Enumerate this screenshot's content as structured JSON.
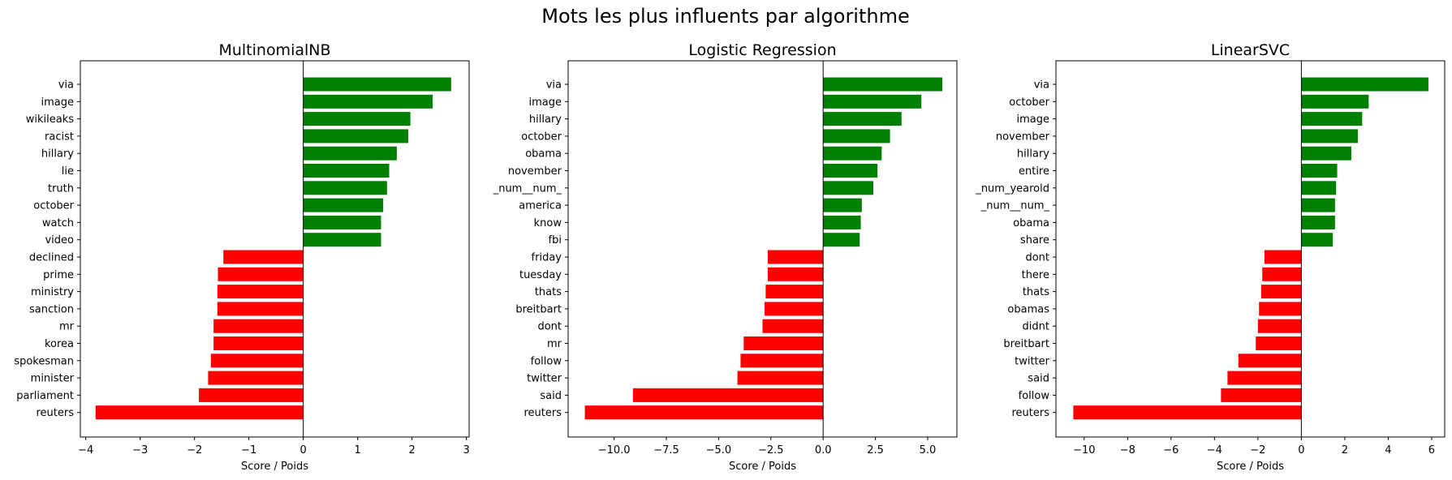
{
  "figure": {
    "title": "Mots les plus influents par algorithme",
    "colors": {
      "positive": "#008000",
      "negative": "#ff0000"
    }
  },
  "chart_data": [
    {
      "type": "bar",
      "orientation": "horizontal",
      "title": "MultinomialNB",
      "xlabel": "Score / Poids",
      "xlim": [
        -4.1,
        3.05
      ],
      "xticks": [
        -4,
        -3,
        -2,
        -1,
        0,
        1,
        2,
        3
      ],
      "xtick_labels": [
        "−4",
        "−3",
        "−2",
        "−1",
        "0",
        "1",
        "2",
        "3"
      ],
      "categories": [
        "via",
        "image",
        "wikileaks",
        "racist",
        "hillary",
        "lie",
        "truth",
        "october",
        "watch",
        "video",
        "declined",
        "prime",
        "ministry",
        "sanction",
        "mr",
        "korea",
        "spokesman",
        "minister",
        "parliament",
        "reuters"
      ],
      "values": [
        2.72,
        2.38,
        1.97,
        1.93,
        1.72,
        1.58,
        1.54,
        1.47,
        1.43,
        1.43,
        -1.47,
        -1.57,
        -1.58,
        -1.58,
        -1.65,
        -1.65,
        -1.7,
        -1.75,
        -1.92,
        -3.82
      ]
    },
    {
      "type": "bar",
      "orientation": "horizontal",
      "title": "Logistic Regression",
      "xlabel": "Score / Poids",
      "xlim": [
        -12.2,
        6.4
      ],
      "xticks": [
        -10,
        -7.5,
        -5,
        -2.5,
        0,
        2.5,
        5
      ],
      "xtick_labels": [
        "−10.0",
        "−7.5",
        "−5.0",
        "−2.5",
        "0.0",
        "2.5",
        "5.0"
      ],
      "categories": [
        "via",
        "image",
        "hillary",
        "october",
        "obama",
        "november",
        "_num__num_",
        "america",
        "know",
        "fbi",
        "friday",
        "tuesday",
        "thats",
        "breitbart",
        "dont",
        "mr",
        "follow",
        "twitter",
        "said",
        "reuters"
      ],
      "values": [
        5.7,
        4.7,
        3.75,
        3.2,
        2.8,
        2.6,
        2.4,
        1.85,
        1.8,
        1.75,
        -2.65,
        -2.65,
        -2.75,
        -2.8,
        -2.9,
        -3.8,
        -3.95,
        -4.1,
        -9.1,
        -11.4
      ]
    },
    {
      "type": "bar",
      "orientation": "horizontal",
      "title": "LinearSVC",
      "xlabel": "Score / Poids",
      "xlim": [
        -11.3,
        6.6
      ],
      "xticks": [
        -10,
        -8,
        -6,
        -4,
        -2,
        0,
        2,
        4,
        6
      ],
      "xtick_labels": [
        "−10",
        "−8",
        "−6",
        "−4",
        "−2",
        "0",
        "2",
        "4",
        "6"
      ],
      "categories": [
        "via",
        "october",
        "image",
        "november",
        "hillary",
        "entire",
        "_num_yearold",
        "_num__num_",
        "obama",
        "share",
        "dont",
        "there",
        "thats",
        "obamas",
        "didnt",
        "breitbart",
        "twitter",
        "said",
        "follow",
        "reuters"
      ],
      "values": [
        5.85,
        3.1,
        2.8,
        2.6,
        2.3,
        1.65,
        1.6,
        1.55,
        1.55,
        1.45,
        -1.7,
        -1.8,
        -1.85,
        -1.95,
        -2.0,
        -2.1,
        -2.9,
        -3.4,
        -3.7,
        -10.5
      ]
    }
  ]
}
